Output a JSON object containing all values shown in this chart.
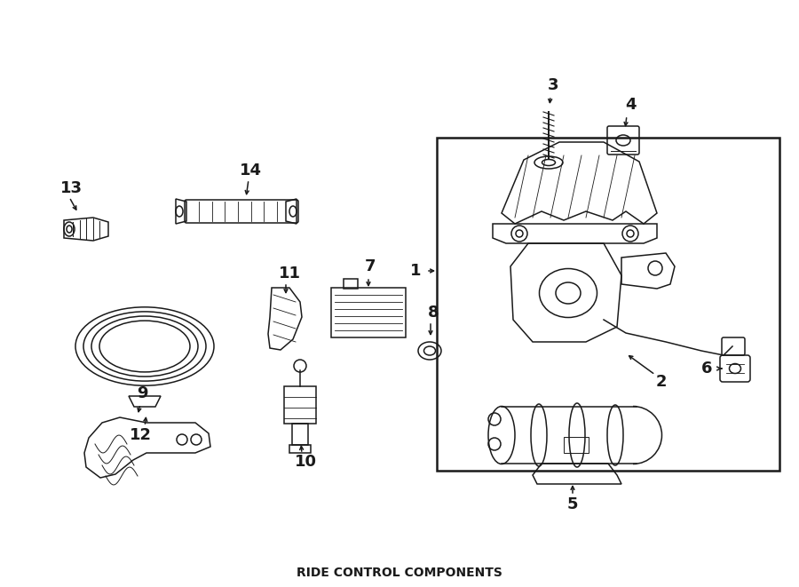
{
  "title": "RIDE CONTROL COMPONENTS",
  "bg_color": "#ffffff",
  "line_color": "#1a1a1a",
  "fig_width": 9.0,
  "fig_height": 6.61,
  "dpi": 100,
  "lw": 1.1
}
